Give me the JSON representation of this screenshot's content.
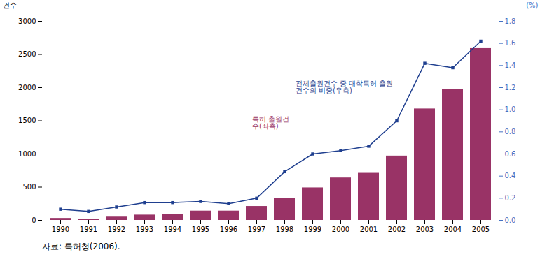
{
  "chart_data": {
    "type": "bar",
    "x": [
      1990,
      1991,
      1992,
      1993,
      1994,
      1995,
      1996,
      1997,
      1998,
      1999,
      2000,
      2001,
      2002,
      2003,
      2004,
      2005
    ],
    "series": [
      {
        "type": "bar",
        "color": "#993366",
        "values": [
          30,
          18,
          50,
          80,
          90,
          140,
          140,
          210,
          330,
          490,
          640,
          710,
          970,
          1680,
          1970,
          2590
        ]
      },
      {
        "type": "line",
        "axis": "y2",
        "color": "#1f3f8f",
        "marker": "square",
        "values": [
          0.1,
          0.08,
          0.12,
          0.16,
          0.16,
          0.17,
          0.15,
          0.2,
          0.44,
          0.6,
          0.63,
          0.67,
          0.9,
          1.42,
          1.38,
          1.62
        ]
      }
    ],
    "ylabel": "건수",
    "y2label": "(%)",
    "ylim": [
      0,
      3000
    ],
    "yticks": [
      0,
      500,
      1000,
      1500,
      2000,
      2500,
      3000
    ],
    "y2lim": [
      0.0,
      1.8
    ],
    "y2ticks": [
      {
        "value": 0.0,
        "label": "0.0"
      },
      0.2,
      0.4,
      0.6,
      0.8,
      {
        "value": 1.0,
        "label": "1.0"
      },
      1.2,
      1.4,
      1.6,
      1.8
    ],
    "annotations": [
      {
        "text": "전체출원건수 중 대학특허 출원\n건수의 비중(우측)",
        "color": "#1f3f8f"
      },
      {
        "text": "특허 출원건\n수(좌측)",
        "color": "#993366"
      }
    ],
    "caption": "자료:  특허청(2006).",
    "grid": false
  }
}
